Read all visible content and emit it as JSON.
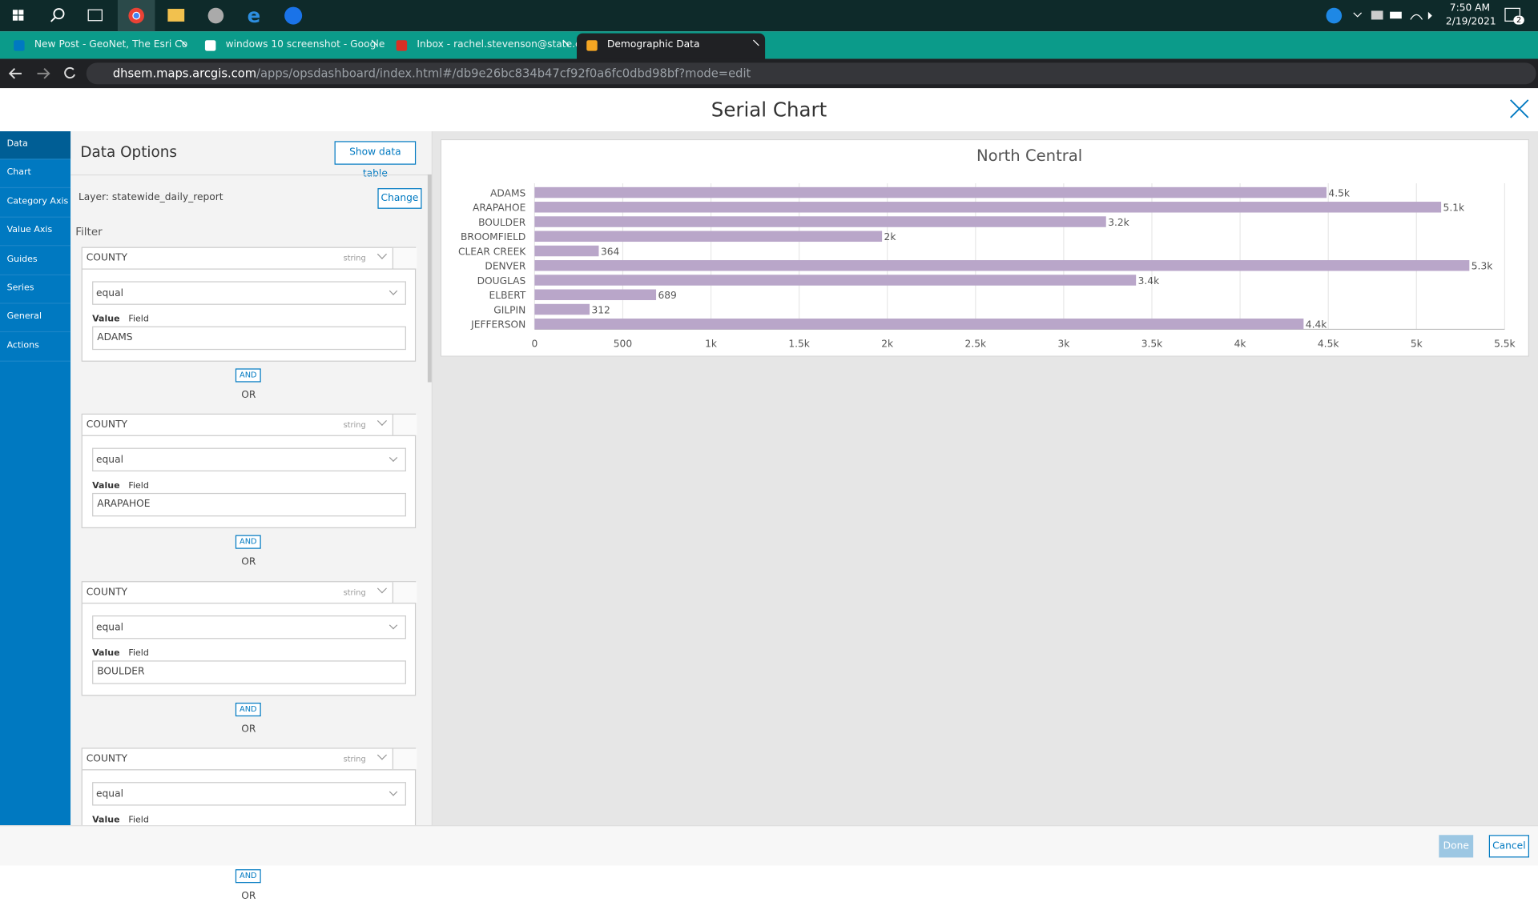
{
  "taskbar": {
    "time": "7:50 AM",
    "date": "2/19/2021",
    "badge": "2"
  },
  "browser": {
    "tabs": [
      "New Post - GeoNet, The Esri Co",
      "windows 10 screenshot - Google",
      "Inbox - rachel.stevenson@state.c",
      "Demographic Data"
    ],
    "url_host": "dhsem.maps.arcgis.com",
    "url_path": "/apps/opsdashboard/index.html#/db9e26bc834b47cf92f0a6fc0dbd98bf?mode=edit"
  },
  "dialog": {
    "title": "Serial Chart",
    "nav": [
      "Data",
      "Chart",
      "Category Axis",
      "Value Axis",
      "Guides",
      "Series",
      "General",
      "Actions"
    ],
    "panel": {
      "title": "Data Options",
      "show_table": "Show data table",
      "layer": "Layer: statewide_daily_report",
      "change": "Change",
      "filter": "Filter",
      "and": "AND",
      "or": "OR",
      "filters": [
        {
          "field": "COUNTY",
          "type": "string",
          "operator": "equal",
          "value_label": "Value",
          "mode_label": "Field",
          "value": "ADAMS"
        },
        {
          "field": "COUNTY",
          "type": "string",
          "operator": "equal",
          "value_label": "Value",
          "mode_label": "Field",
          "value": "ARAPAHOE"
        },
        {
          "field": "COUNTY",
          "type": "string",
          "operator": "equal",
          "value_label": "Value",
          "mode_label": "Field",
          "value": "BOULDER"
        },
        {
          "field": "COUNTY",
          "type": "string",
          "operator": "equal",
          "value_label": "Value",
          "mode_label": "Field"
        }
      ]
    },
    "done": "Done",
    "cancel": "Cancel"
  },
  "chart_data": {
    "type": "hbar",
    "title": "North Central",
    "color": "#b9a6c9",
    "categories": [
      "ADAMS",
      "ARAPAHOE",
      "BOULDER",
      "BROOMFIELD",
      "CLEAR CREEK",
      "DENVER",
      "DOUGLAS",
      "ELBERT",
      "GILPIN",
      "JEFFERSON"
    ],
    "values": [
      4490,
      5140,
      3240,
      1970,
      364,
      5300,
      3410,
      689,
      312,
      4360
    ],
    "value_labels": [
      "4.5k",
      "5.1k",
      "3.2k",
      "2k",
      "364",
      "5.3k",
      "3.4k",
      "689",
      "312",
      "4.4k"
    ],
    "xlim": [
      0,
      5500
    ],
    "xticks": [
      0,
      500,
      {
        "value": 1000,
        "label": "1k"
      },
      {
        "value": 1500,
        "label": "1.5k"
      },
      {
        "value": 2000,
        "label": "2k"
      },
      {
        "value": 2500,
        "label": "2.5k"
      },
      {
        "value": 3000,
        "label": "3k"
      },
      {
        "value": 3500,
        "label": "3.5k"
      },
      {
        "value": 4000,
        "label": "4k"
      },
      {
        "value": 4500,
        "label": "4.5k"
      },
      {
        "value": 5000,
        "label": "5k"
      },
      {
        "value": 5500,
        "label": "5.5k"
      }
    ],
    "grid": true
  }
}
